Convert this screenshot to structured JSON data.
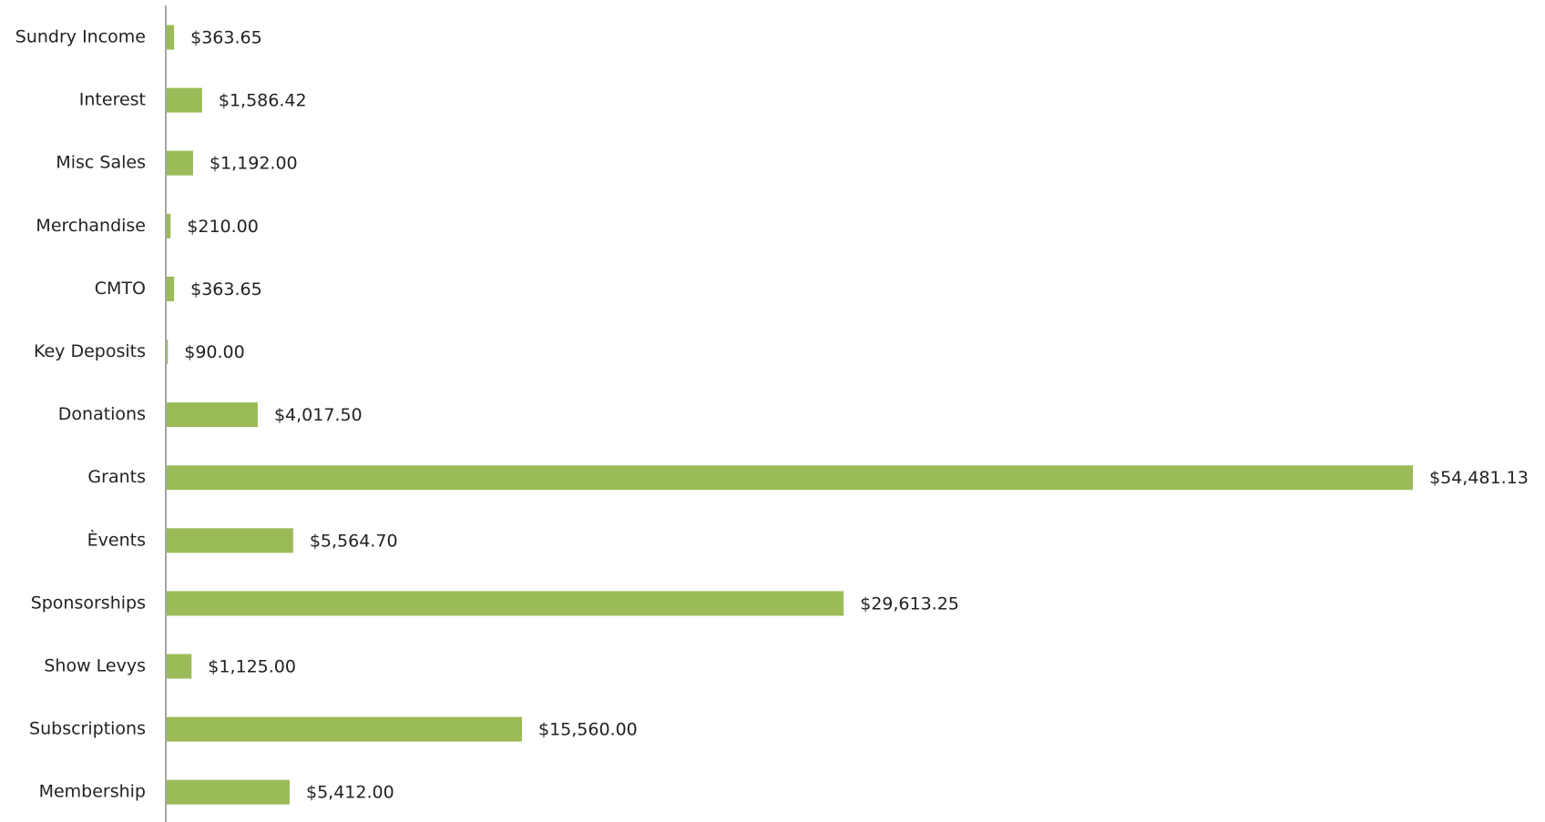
{
  "chart_data": {
    "type": "bar",
    "orientation": "horizontal",
    "color": "#9bbb59",
    "categories": [
      "Sundry Income",
      "Interest",
      "Misc Sales",
      "Merchandise",
      "CMTO",
      "Key Deposits",
      "Donations",
      "Grants",
      "Èvents",
      "Sponsorships",
      "Show Levys",
      "Subscriptions",
      "Membership"
    ],
    "values": [
      363.65,
      1586.42,
      1192.0,
      210.0,
      363.65,
      90.0,
      4017.5,
      54481.13,
      5564.7,
      29613.25,
      1125.0,
      15560.0,
      5412.0
    ],
    "value_labels": [
      "$363.65",
      "$1,586.42",
      "$1,192.00",
      "$210.00",
      "$363.65",
      "$90.00",
      "$4,017.50",
      "$54,481.13",
      "$5,564.70",
      "$29,613.25",
      "$1,125.00",
      "$15,560.00",
      "$5,412.00"
    ]
  }
}
